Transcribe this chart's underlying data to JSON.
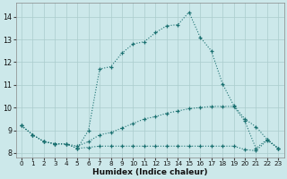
{
  "xlabel": "Humidex (Indice chaleur)",
  "bg_color": "#cce8ea",
  "grid_color": "#aacccc",
  "line_color": "#1a7070",
  "xlim": [
    -0.5,
    23.5
  ],
  "ylim": [
    7.8,
    14.6
  ],
  "yticks": [
    8,
    9,
    10,
    11,
    12,
    13,
    14
  ],
  "xticks": [
    0,
    1,
    2,
    3,
    4,
    5,
    6,
    7,
    8,
    9,
    10,
    11,
    12,
    13,
    14,
    15,
    16,
    17,
    18,
    19,
    20,
    21,
    22,
    23
  ],
  "series": [
    {
      "x": [
        0,
        1,
        2,
        3,
        4,
        5,
        6,
        7,
        8,
        9,
        10,
        11,
        12,
        13,
        14,
        15,
        16,
        17,
        18,
        19,
        20,
        21,
        22,
        23
      ],
      "y": [
        9.2,
        8.8,
        8.5,
        8.4,
        8.4,
        8.2,
        9.0,
        11.7,
        11.8,
        12.4,
        12.8,
        12.9,
        13.3,
        13.6,
        13.65,
        14.2,
        13.1,
        12.5,
        11.05,
        10.1,
        9.5,
        9.15,
        8.6,
        8.2
      ]
    },
    {
      "x": [
        0,
        1,
        2,
        3,
        4,
        5,
        6,
        7,
        8,
        9,
        10,
        11,
        12,
        13,
        14,
        15,
        16,
        17,
        18,
        19,
        20,
        21,
        22,
        23
      ],
      "y": [
        9.2,
        8.8,
        8.5,
        8.4,
        8.4,
        8.3,
        8.5,
        8.8,
        8.9,
        9.1,
        9.3,
        9.5,
        9.6,
        9.75,
        9.85,
        9.95,
        10.0,
        10.05,
        10.05,
        10.05,
        9.4,
        8.2,
        8.6,
        8.2
      ]
    },
    {
      "x": [
        0,
        1,
        2,
        3,
        4,
        5,
        6,
        7,
        8,
        9,
        10,
        11,
        12,
        13,
        14,
        15,
        16,
        17,
        18,
        19,
        20,
        21,
        22,
        23
      ],
      "y": [
        9.2,
        8.8,
        8.5,
        8.4,
        8.4,
        8.2,
        8.25,
        8.3,
        8.3,
        8.3,
        8.3,
        8.3,
        8.3,
        8.3,
        8.3,
        8.3,
        8.3,
        8.3,
        8.3,
        8.3,
        8.15,
        8.1,
        8.55,
        8.2
      ]
    }
  ]
}
